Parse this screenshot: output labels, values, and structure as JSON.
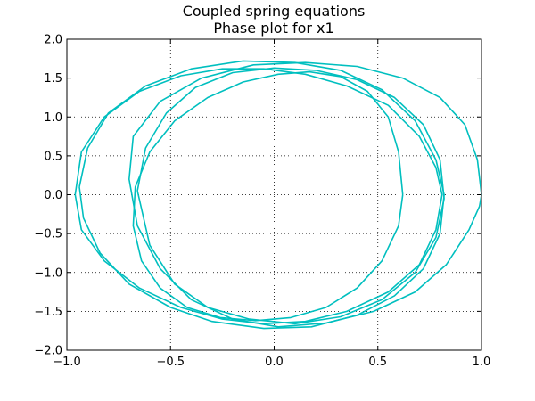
{
  "chart_data": {
    "type": "line",
    "title": "Coupled spring equations",
    "subtitle": "Phase plot for x1",
    "xlabel": "",
    "ylabel": "",
    "xlim": [
      -1.0,
      1.0
    ],
    "ylim": [
      -2.0,
      2.0
    ],
    "xticks": [
      -1.0,
      -0.5,
      0.0,
      0.5,
      1.0
    ],
    "xtick_labels": [
      "−1.0",
      "−0.5",
      "0.0",
      "0.5",
      "1.0"
    ],
    "yticks": [
      -2.0,
      -1.5,
      -1.0,
      -0.5,
      0.0,
      0.5,
      1.0,
      1.5,
      2.0
    ],
    "ytick_labels": [
      "−2.0",
      "−1.5",
      "−1.0",
      "−0.5",
      "0.0",
      "0.5",
      "1.0",
      "1.5",
      "2.0"
    ],
    "grid": true,
    "color": "#00bfbf",
    "series": [
      {
        "x": [
          0.62,
          0.6,
          0.55,
          0.45,
          0.32,
          0.17,
          0.02,
          -0.15,
          -0.32,
          -0.48,
          -0.6,
          -0.67,
          -0.68,
          -0.64,
          -0.55,
          -0.42,
          -0.26,
          -0.09,
          0.08,
          0.25,
          0.4,
          0.52,
          0.6,
          0.62
        ],
        "y": [
          0.0,
          0.55,
          1.0,
          1.33,
          1.52,
          1.58,
          1.55,
          1.45,
          1.25,
          0.95,
          0.55,
          0.1,
          -0.4,
          -0.85,
          -1.2,
          -1.45,
          -1.58,
          -1.62,
          -1.58,
          -1.45,
          -1.2,
          -0.85,
          -0.4,
          0.0
        ]
      },
      {
        "x": [
          -0.96,
          -0.93,
          -0.82,
          -0.65,
          -0.45,
          -0.25,
          -0.05,
          0.15,
          0.35,
          0.55,
          0.7,
          0.78,
          0.81,
          0.78,
          0.7,
          0.55,
          0.35,
          0.15,
          -0.05,
          -0.25,
          -0.45,
          -0.65,
          -0.82,
          -0.93,
          -0.96
        ],
        "y": [
          0.0,
          0.55,
          1.0,
          1.33,
          1.53,
          1.62,
          1.62,
          1.55,
          1.4,
          1.15,
          0.75,
          0.35,
          0.0,
          -0.45,
          -0.9,
          -1.25,
          -1.5,
          -1.63,
          -1.66,
          -1.6,
          -1.45,
          -1.2,
          -0.85,
          -0.45,
          0.0
        ]
      },
      {
        "x": [
          1.0,
          0.98,
          0.92,
          0.8,
          0.62,
          0.4,
          0.15,
          -0.1,
          -0.35,
          -0.55,
          -0.68,
          -0.7,
          -0.66,
          -0.55,
          -0.4,
          -0.2,
          0.02,
          0.25,
          0.48,
          0.68,
          0.83,
          0.94,
          0.99,
          1.0
        ],
        "y": [
          0.0,
          0.45,
          0.9,
          1.25,
          1.5,
          1.65,
          1.7,
          1.67,
          1.5,
          1.2,
          0.75,
          0.2,
          -0.4,
          -0.95,
          -1.35,
          -1.6,
          -1.7,
          -1.65,
          -1.5,
          -1.25,
          -0.9,
          -0.45,
          -0.15,
          0.0
        ]
      },
      {
        "x": [
          -0.94,
          -0.9,
          -0.8,
          -0.62,
          -0.4,
          -0.15,
          0.1,
          0.32,
          0.52,
          0.68,
          0.78,
          0.82,
          0.8,
          0.72,
          0.58,
          0.4,
          0.18,
          -0.05,
          -0.3,
          -0.5,
          -0.7,
          -0.84,
          -0.92,
          -0.94
        ],
        "y": [
          0.1,
          0.6,
          1.05,
          1.4,
          1.62,
          1.72,
          1.7,
          1.6,
          1.35,
          0.95,
          0.45,
          0.0,
          -0.5,
          -0.95,
          -1.3,
          -1.55,
          -1.7,
          -1.72,
          -1.63,
          -1.45,
          -1.15,
          -0.75,
          -0.3,
          0.1
        ]
      },
      {
        "x": [
          -0.66,
          -0.62,
          -0.52,
          -0.38,
          -0.2,
          0.0,
          0.2,
          0.4,
          0.58,
          0.72,
          0.8,
          0.82,
          0.78,
          0.68,
          0.52,
          0.32,
          0.1,
          -0.12,
          -0.32,
          -0.48,
          -0.6,
          -0.66
        ],
        "y": [
          0.05,
          0.6,
          1.05,
          1.38,
          1.57,
          1.63,
          1.6,
          1.48,
          1.25,
          0.9,
          0.45,
          -0.05,
          -0.55,
          -1.0,
          -1.35,
          -1.57,
          -1.66,
          -1.6,
          -1.45,
          -1.15,
          -0.65,
          0.05
        ]
      }
    ]
  }
}
